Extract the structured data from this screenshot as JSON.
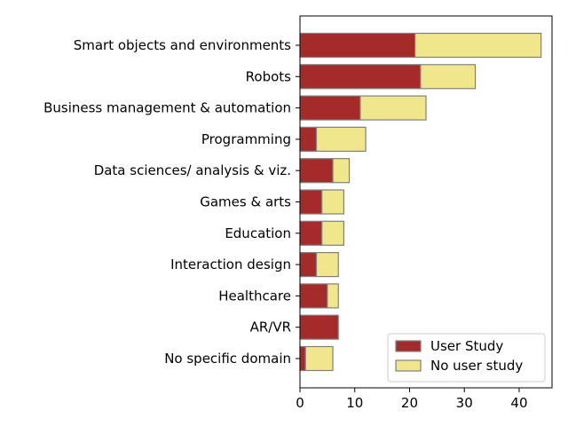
{
  "chart_data": {
    "type": "bar",
    "orientation": "horizontal",
    "stacked": true,
    "categories": [
      "Smart objects and environments",
      "Robots",
      "Business management & automation",
      "Programming",
      "Data sciences/ analysis & viz.",
      "Games & arts",
      "Education",
      "Interaction design",
      "Healthcare",
      "AR/VR",
      "No specific domain"
    ],
    "series": [
      {
        "name": "User Study",
        "color": "#a52a2a",
        "values": [
          21,
          22,
          11,
          3,
          6,
          4,
          4,
          3,
          5,
          7,
          1
        ]
      },
      {
        "name": "No user study",
        "color": "#f0e68c",
        "values": [
          23,
          10,
          12,
          9,
          3,
          4,
          4,
          4,
          2,
          0,
          5
        ]
      }
    ],
    "xlim": [
      0,
      46
    ],
    "xticks": [
      0,
      10,
      20,
      30,
      40
    ],
    "grid": false,
    "legend_position": "bottom-right",
    "title": "",
    "xlabel": "",
    "ylabel": ""
  }
}
